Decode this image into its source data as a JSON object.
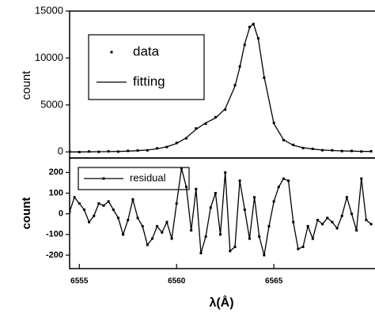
{
  "chart_data": [
    {
      "type": "line",
      "ylabel": "count",
      "x": [
        6554.5,
        6555,
        6555.5,
        6556,
        6556.5,
        6557,
        6557.5,
        6558,
        6558.5,
        6559,
        6559.5,
        6560,
        6560.5,
        6561,
        6561.5,
        6562,
        6562.5,
        6563,
        6563.25,
        6563.5,
        6563.75,
        6563.95,
        6564.2,
        6564.5,
        6565,
        6565.5,
        6566,
        6566.5,
        6567,
        6567.5,
        6568,
        6568.5,
        6569,
        6569.5,
        6570
      ],
      "series": [
        {
          "name": "data",
          "mode": "markers",
          "color": "#000000",
          "values": [
            30,
            -20,
            40,
            10,
            60,
            30,
            110,
            150,
            170,
            380,
            520,
            950,
            1450,
            2500,
            3000,
            3700,
            4500,
            7100,
            9100,
            11400,
            13300,
            13600,
            12100,
            7900,
            3100,
            1250,
            750,
            400,
            320,
            180,
            170,
            90,
            100,
            40,
            70
          ]
        },
        {
          "name": "fitting",
          "mode": "line",
          "color": "#000000",
          "values": [
            0,
            0,
            10,
            20,
            30,
            50,
            80,
            130,
            200,
            330,
            550,
            900,
            1500,
            2400,
            3100,
            3600,
            4600,
            7000,
            9000,
            11500,
            13200,
            13700,
            12000,
            8000,
            3000,
            1300,
            700,
            450,
            300,
            200,
            150,
            110,
            80,
            60,
            50
          ]
        }
      ],
      "xlim": [
        6554.5,
        6570.2
      ],
      "ylim": [
        -650,
        15000
      ],
      "yticks": [
        0,
        5000,
        10000,
        15000
      ]
    },
    {
      "type": "line",
      "ylabel": "count",
      "xlabel": "λ(Å)",
      "x": [
        6554.5,
        6554.75,
        6555,
        6555.25,
        6555.5,
        6555.75,
        6556,
        6556.25,
        6556.5,
        6556.75,
        6557,
        6557.25,
        6557.5,
        6557.75,
        6558,
        6558.25,
        6558.5,
        6558.75,
        6559,
        6559.25,
        6559.5,
        6559.75,
        6560,
        6560.25,
        6560.5,
        6560.75,
        6561,
        6561.25,
        6561.5,
        6561.75,
        6562,
        6562.25,
        6562.5,
        6562.75,
        6563,
        6563.25,
        6563.5,
        6563.75,
        6564,
        6564.25,
        6564.5,
        6564.75,
        6565,
        6565.25,
        6565.5,
        6565.75,
        6566,
        6566.25,
        6566.5,
        6566.75,
        6567,
        6567.25,
        6567.5,
        6567.75,
        6568,
        6568.25,
        6568.5,
        6568.75,
        6569,
        6569.25,
        6569.5,
        6569.75,
        6570
      ],
      "series": [
        {
          "name": "residual",
          "mode": "line+markers",
          "color": "#000000",
          "values": [
            10,
            80,
            50,
            20,
            -40,
            -10,
            50,
            40,
            60,
            20,
            -20,
            -100,
            -30,
            70,
            -20,
            -60,
            -150,
            -120,
            -60,
            -90,
            -40,
            -120,
            50,
            220,
            130,
            -80,
            120,
            -190,
            -110,
            30,
            100,
            -100,
            200,
            -180,
            -160,
            160,
            20,
            -120,
            80,
            -110,
            -200,
            -60,
            60,
            130,
            170,
            160,
            -40,
            -170,
            -160,
            -60,
            -120,
            -30,
            -50,
            -20,
            -40,
            -70,
            -10,
            80,
            0,
            -80,
            170,
            -30,
            -50
          ]
        }
      ],
      "xlim": [
        6554.5,
        6570.2
      ],
      "ylim": [
        -265,
        270
      ],
      "yticks": [
        -200,
        -100,
        0,
        100,
        200
      ],
      "xticks": [
        6555,
        6560,
        6565
      ]
    }
  ]
}
